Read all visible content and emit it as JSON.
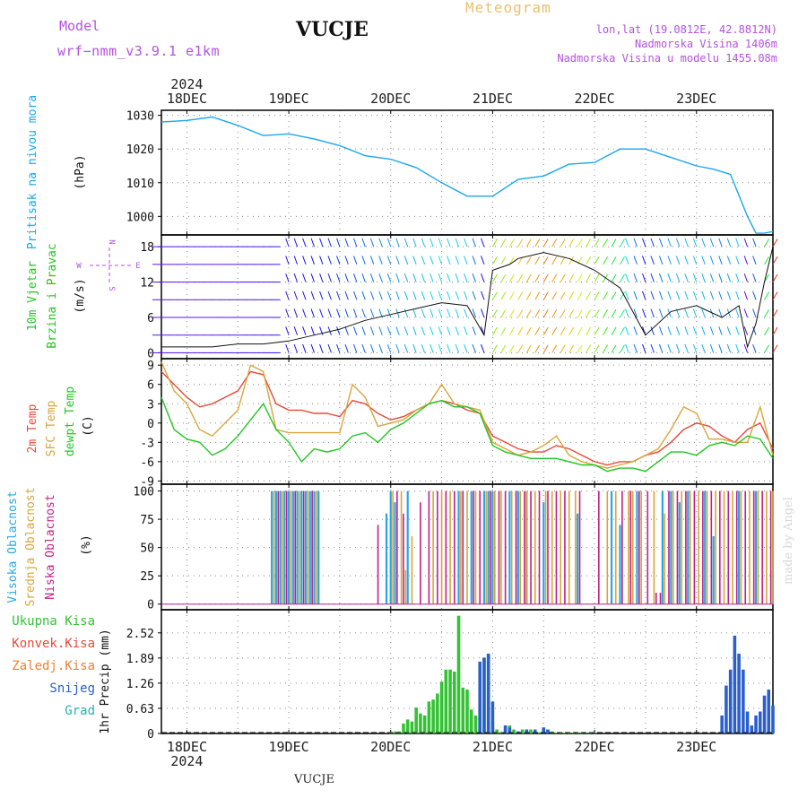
{
  "header": {
    "model_label": "Model",
    "model_name": "wrf−nmm_v3.9.1  e1km",
    "station": "VUCJE",
    "meteogram": "Meteogram",
    "lonlat": "lon,lat (19.0812E, 42.8812N)",
    "altitude": "Nadmorska Visina 1406m",
    "model_altitude": "Nadmorska Visina u modelu 1455.08m"
  },
  "footer": {
    "station": "VUCJE",
    "credit": "made by Angel"
  },
  "time_axis": {
    "year": "2024",
    "days": [
      "18DEC",
      "19DEC",
      "20DEC",
      "21DEC",
      "22DEC",
      "23DEC"
    ],
    "start_hour": -6,
    "end_hour": 138
  },
  "colors": {
    "pressure": "#1aa7ee",
    "temp_2m": "#e84a3a",
    "temp_sfc": "#d9a53a",
    "dewpoint": "#22c622",
    "high_cloud": "#2aa6e0",
    "mid_cloud": "#d9a53a",
    "low_cloud": "#c0208a",
    "total_precip": "#33c233",
    "snow": "#2a5fcc",
    "hail": "#22b5b5"
  },
  "chart_data": [
    {
      "type": "line",
      "name": "pressure",
      "ylabel": "Pritisak na nivou mora",
      "unit": "(hPa)",
      "yticks": [
        1000,
        1010,
        1020,
        1030
      ],
      "ylim": [
        994.5,
        1031.5
      ],
      "grid": true,
      "x": [
        -6,
        0,
        6,
        12,
        18,
        24,
        30,
        36,
        42,
        48,
        54,
        60,
        66,
        72,
        78,
        84,
        90,
        96,
        102,
        108,
        114,
        120,
        124,
        128,
        132,
        134,
        136,
        138
      ],
      "y": [
        1028,
        1028.5,
        1029.5,
        1027,
        1024,
        1024.5,
        1023,
        1021,
        1018,
        1017,
        1014.5,
        1010,
        1006,
        1006,
        1011,
        1012,
        1015.5,
        1016,
        1020,
        1020,
        1017.5,
        1015,
        1014,
        1012.5,
        1000,
        995,
        995,
        995.5
      ]
    },
    {
      "type": "line",
      "name": "wind",
      "ylabel_lines": [
        "10m Vjetar",
        "Brzina i Pravac"
      ],
      "unit": "(m/s)",
      "compass": {
        "n": "N",
        "s": "S",
        "w": "W",
        "e": "E"
      },
      "yticks": [
        0,
        6,
        12,
        18
      ],
      "ylim": [
        -1,
        20
      ],
      "grid": true,
      "x": [
        -6,
        0,
        6,
        12,
        18,
        24,
        30,
        36,
        42,
        48,
        54,
        60,
        66,
        70,
        72,
        76,
        78,
        84,
        90,
        96,
        102,
        108,
        114,
        120,
        126,
        130,
        132,
        134,
        136,
        138
      ],
      "y": [
        1,
        1,
        1,
        1.5,
        1.5,
        2,
        3,
        4,
        5.5,
        6.5,
        7.5,
        8.5,
        8,
        3,
        14,
        15,
        16,
        17,
        16,
        14,
        11,
        3,
        7,
        8,
        6,
        8,
        1,
        5,
        12,
        18
      ]
    },
    {
      "type": "line",
      "name": "temperature",
      "ylabel_lines": [
        "2m Temp",
        "SFC Temp",
        "dewpt Temp"
      ],
      "unit": "(C)",
      "yticks": [
        -9,
        -6,
        -3,
        0,
        3,
        6,
        9
      ],
      "ylim": [
        -9.5,
        10
      ],
      "grid": true,
      "x": [
        -6,
        -3,
        0,
        3,
        6,
        9,
        12,
        15,
        18,
        21,
        24,
        27,
        30,
        33,
        36,
        39,
        42,
        45,
        48,
        51,
        54,
        57,
        60,
        63,
        66,
        69,
        72,
        75,
        78,
        81,
        84,
        87,
        90,
        93,
        96,
        99,
        102,
        105,
        108,
        111,
        114,
        117,
        120,
        123,
        126,
        129,
        132,
        135,
        138
      ],
      "series": [
        {
          "name": "2m Temp",
          "values": [
            8,
            6,
            4,
            2.5,
            3,
            4,
            5,
            8,
            7.5,
            3,
            2,
            2,
            1.5,
            1.5,
            1,
            3.5,
            3,
            1.5,
            0.5,
            1,
            2,
            3,
            3.5,
            3,
            2,
            1.5,
            -2,
            -3,
            -4,
            -4.5,
            -4.5,
            -3.5,
            -4,
            -5,
            -6,
            -6.5,
            -6,
            -6,
            -5,
            -4.5,
            -3,
            -1,
            0,
            -0.5,
            -2,
            -3,
            -1,
            0,
            -4
          ]
        },
        {
          "name": "SFC Temp",
          "values": [
            9.5,
            5,
            3,
            -1,
            -2,
            0,
            2,
            9,
            8,
            -1,
            -1.5,
            -1.5,
            -1.5,
            -1.5,
            -1.5,
            6,
            4,
            -0.5,
            0,
            0.5,
            2,
            3,
            6,
            3,
            2.5,
            2,
            -3,
            -4,
            -5,
            -4.5,
            -3.5,
            -2,
            -5,
            -6,
            -6.5,
            -7,
            -6.5,
            -6,
            -5,
            -4,
            -1,
            2.5,
            1.5,
            -2.5,
            -2.5,
            -3,
            -3,
            2.5,
            -5
          ]
        },
        {
          "name": "dewpt Temp",
          "values": [
            4,
            -1,
            -2.5,
            -3,
            -5,
            -4,
            -2,
            0.5,
            3,
            -1,
            -3,
            -6,
            -4,
            -4.5,
            -4,
            -2,
            -1.5,
            -3,
            -1,
            0,
            1.5,
            3,
            3.5,
            2.5,
            2.5,
            1.5,
            -3.5,
            -4.5,
            -5,
            -5.5,
            -5.5,
            -5.5,
            -6,
            -6.5,
            -6.5,
            -7.5,
            -7,
            -7,
            -7.5,
            -6,
            -4.5,
            -4.5,
            -5,
            -3.5,
            -3,
            -3.5,
            -2,
            -2.5,
            -5.5
          ]
        }
      ]
    },
    {
      "type": "bar",
      "name": "clouds",
      "ylabel_lines": [
        "Visoka Oblacnost",
        "Srednja Oblacnost",
        "Niska Oblacnost"
      ],
      "unit": "(%)",
      "yticks": [
        0,
        25,
        50,
        75,
        100
      ],
      "ylim": [
        -5,
        106
      ],
      "grid": true,
      "series": [
        {
          "name": "Visoka Oblacnost",
          "x": [
            20,
            21,
            22,
            23,
            24,
            25,
            26,
            27,
            28,
            29,
            30,
            31,
            47,
            48,
            49,
            52,
            64,
            67,
            70,
            71,
            72,
            76,
            78,
            80,
            84,
            92,
            100,
            102,
            106,
            112,
            114,
            116,
            118,
            122,
            124,
            130,
            134,
            138
          ],
          "values": [
            100,
            100,
            100,
            100,
            100,
            100,
            100,
            100,
            100,
            100,
            100,
            100,
            80,
            100,
            90,
            100,
            100,
            100,
            100,
            100,
            100,
            100,
            100,
            100,
            90,
            80,
            100,
            70,
            100,
            100,
            100,
            90,
            100,
            100,
            60,
            100,
            100,
            30
          ]
        },
        {
          "name": "Srednja Oblacnost",
          "x": [
            20.5,
            22.5,
            24.5,
            26.5,
            28.5,
            30.5,
            48.5,
            50.5,
            51.5,
            53,
            58,
            60,
            62,
            64.5,
            66,
            68,
            70.5,
            72.5,
            74,
            76.5,
            78.5,
            80,
            82,
            84.5,
            86,
            88,
            90,
            91.5,
            99,
            101,
            104,
            105,
            107,
            110,
            112.5,
            114.5,
            116.5,
            118.5,
            120.5,
            122.5,
            124.5,
            126.5,
            128.5,
            130.5,
            132.5,
            134.5,
            136.5,
            138
          ],
          "values": [
            100,
            100,
            100,
            100,
            100,
            100,
            100,
            100,
            30,
            60,
            100,
            100,
            100,
            100,
            100,
            100,
            100,
            100,
            100,
            100,
            100,
            100,
            100,
            100,
            100,
            100,
            100,
            100,
            100,
            100,
            100,
            100,
            100,
            100,
            80,
            100,
            100,
            100,
            100,
            100,
            100,
            100,
            100,
            100,
            100,
            100,
            100,
            100
          ]
        },
        {
          "name": "Niska Oblacnost",
          "x": [
            21.5,
            23.5,
            25.5,
            27.5,
            29.5,
            45,
            49.5,
            51,
            55,
            57,
            59,
            61,
            63,
            65,
            67.5,
            69,
            71.5,
            73.5,
            75,
            77.5,
            79.5,
            81,
            83,
            85,
            87,
            89,
            92.5,
            97,
            102.5,
            104.5,
            106.5,
            108.5,
            110.5,
            111.5,
            113.5,
            115.5,
            117.5,
            119.5,
            121.5,
            123.5,
            125.5,
            127.5,
            129.5,
            131.5,
            133.5,
            135.5,
            137.5
          ],
          "values": [
            100,
            100,
            100,
            100,
            100,
            70,
            100,
            80,
            90,
            100,
            100,
            100,
            100,
            100,
            100,
            100,
            100,
            100,
            100,
            100,
            100,
            100,
            100,
            100,
            100,
            100,
            100,
            100,
            100,
            100,
            100,
            100,
            10,
            10,
            100,
            100,
            100,
            100,
            100,
            100,
            100,
            100,
            100,
            100,
            100,
            100,
            100
          ]
        }
      ]
    },
    {
      "type": "bar",
      "name": "precipitation",
      "ylabel": "1hr Precip",
      "unit": "(mm)",
      "legend": [
        "Ukupna Kisa",
        "Konvek.Kisa",
        "Zaledj.Kisa",
        "Snijeg",
        "Grad"
      ],
      "yticks": [
        0,
        0.63,
        1.26,
        1.89,
        2.52
      ],
      "ylim": [
        0,
        3.1
      ],
      "grid": true,
      "series": [
        {
          "name": "Ukupna Kisa",
          "x": [
            48,
            49,
            50,
            51,
            52,
            53,
            54,
            55,
            56,
            57,
            58,
            59,
            60,
            61,
            62,
            63,
            64,
            65,
            66,
            67,
            68,
            69,
            70,
            71,
            72,
            73,
            74,
            75,
            76,
            77,
            78,
            79,
            80,
            81,
            82,
            83,
            84,
            85,
            86,
            87,
            88,
            89,
            90,
            91,
            92,
            93,
            94,
            95,
            96
          ],
          "values": [
            0.02,
            0.05,
            0.05,
            0.25,
            0.35,
            0.3,
            0.65,
            0.5,
            0.45,
            0.8,
            0.85,
            1,
            1.3,
            1.6,
            1.6,
            1.55,
            2.95,
            1.15,
            1.1,
            0.6,
            0.45,
            0.7,
            1.9,
            2,
            0.3,
            0.1,
            0.03,
            0.2,
            0.2,
            0.1,
            0.05,
            0.1,
            0.1,
            0.1,
            0.05,
            0.03,
            0.15,
            0.1,
            0.05,
            0.02,
            0.02,
            0.02,
            0.02,
            0.02,
            0.02,
            0.01,
            0.01,
            0.01,
            0.01
          ]
        },
        {
          "name": "Snijeg",
          "x": [
            69,
            70,
            71,
            72,
            75,
            76,
            78,
            80,
            82,
            84,
            85,
            126,
            127,
            128,
            129,
            130,
            131,
            132,
            133,
            134,
            135,
            136,
            137,
            138
          ],
          "values": [
            1.8,
            1.9,
            2,
            0.8,
            0.2,
            0.15,
            0.05,
            0.1,
            0.1,
            0.15,
            0.1,
            0.45,
            1.2,
            1.6,
            2.45,
            2,
            1.6,
            0.55,
            0.2,
            0.45,
            0.55,
            0.95,
            1.1,
            0.7
          ]
        }
      ]
    }
  ]
}
